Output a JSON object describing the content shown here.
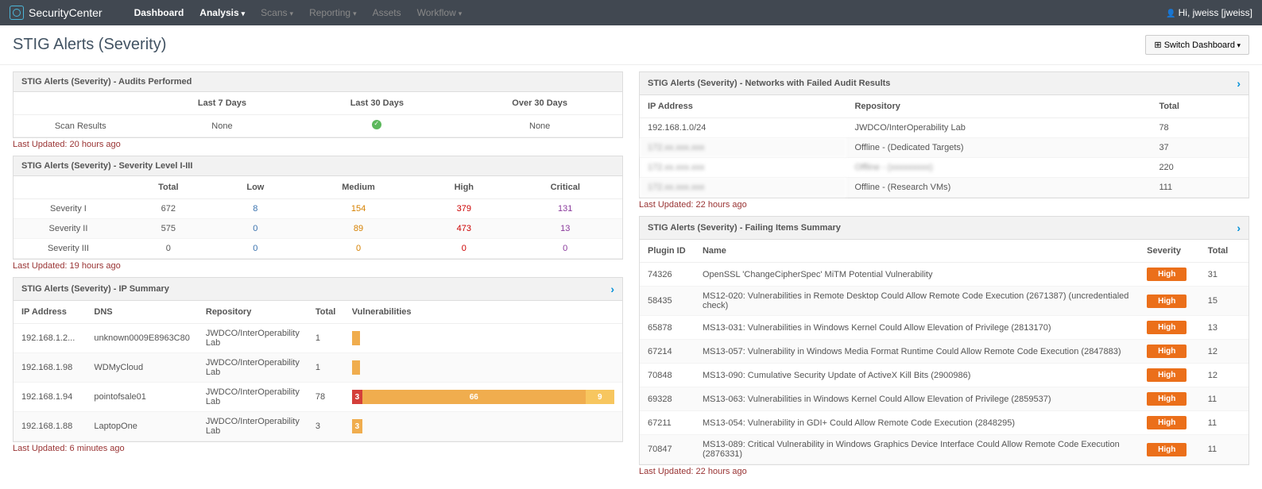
{
  "brand": "SecurityCenter",
  "nav": {
    "items": [
      {
        "label": "Dashboard",
        "active": true,
        "caret": false
      },
      {
        "label": "Analysis",
        "active": true,
        "caret": true
      },
      {
        "label": "Scans",
        "active": false,
        "caret": true
      },
      {
        "label": "Reporting",
        "active": false,
        "caret": true
      },
      {
        "label": "Assets",
        "active": false,
        "caret": false
      },
      {
        "label": "Workflow",
        "active": false,
        "caret": true
      }
    ],
    "user": "Hi, jweiss [jweiss]"
  },
  "page": {
    "title": "STIG Alerts (Severity)",
    "switch": "Switch Dashboard"
  },
  "audits": {
    "title": "STIG Alerts (Severity) - Audits Performed",
    "cols": [
      "Last 7 Days",
      "Last 30 Days",
      "Over 30 Days"
    ],
    "row_label": "Scan Results",
    "cells": [
      "None",
      "CHECK",
      "None"
    ],
    "updated": "Last Updated: 20 hours ago"
  },
  "severity": {
    "title": "STIG Alerts (Severity) - Severity Level I-III",
    "cols": [
      "Total",
      "Low",
      "Medium",
      "High",
      "Critical"
    ],
    "rows": [
      {
        "label": "Severity I",
        "vals": [
          "672",
          "8",
          "154",
          "379",
          "131"
        ]
      },
      {
        "label": "Severity II",
        "vals": [
          "575",
          "0",
          "89",
          "473",
          "13"
        ]
      },
      {
        "label": "Severity III",
        "vals": [
          "0",
          "0",
          "0",
          "0",
          "0"
        ]
      }
    ],
    "col_colors": [
      "#555",
      "#3b73af",
      "#d68100",
      "#c00",
      "#8a3a9c"
    ],
    "updated": "Last Updated: 19 hours ago"
  },
  "ipsummary": {
    "title": "STIG Alerts (Severity) - IP Summary",
    "cols": [
      "IP Address",
      "DNS",
      "Repository",
      "Total",
      "Vulnerabilities"
    ],
    "rows": [
      {
        "ip": "192.168.1.2...",
        "dns": "unknown0009E8963C80",
        "repo": "JWDCO/InterOperability Lab",
        "total": "1",
        "bar": [
          {
            "w": 3,
            "c": "#f0ad4e",
            "t": ""
          }
        ]
      },
      {
        "ip": "192.168.1.98",
        "dns": "WDMyCloud",
        "repo": "JWDCO/InterOperability Lab",
        "total": "1",
        "bar": [
          {
            "w": 3,
            "c": "#f0ad4e",
            "t": ""
          }
        ]
      },
      {
        "ip": "192.168.1.94",
        "dns": "pointofsale01",
        "repo": "JWDCO/InterOperability Lab",
        "total": "78",
        "bar": [
          {
            "w": 4,
            "c": "#d43f3a",
            "t": "3"
          },
          {
            "w": 85,
            "c": "#f0ad4e",
            "t": "66"
          },
          {
            "w": 11,
            "c": "#f7c65f",
            "t": "9"
          }
        ]
      },
      {
        "ip": "192.168.1.88",
        "dns": "LaptopOne",
        "repo": "JWDCO/InterOperability Lab",
        "total": "3",
        "bar": [
          {
            "w": 4,
            "c": "#f0ad4e",
            "t": "3"
          }
        ]
      }
    ],
    "updated": "Last Updated: 6 minutes ago"
  },
  "networks": {
    "title": "STIG Alerts (Severity) - Networks with Failed Audit Results",
    "cols": [
      "IP Address",
      "Repository",
      "Total"
    ],
    "rows": [
      {
        "ip": "192.168.1.0/24",
        "repo": "JWDCO/InterOperability Lab",
        "total": "78",
        "obs_ip": false,
        "obs_repo": false
      },
      {
        "ip": "172.xx.xxx.xxx",
        "repo": "Offline - (Dedicated Targets)",
        "total": "37",
        "obs_ip": true,
        "obs_repo": false
      },
      {
        "ip": "172.xx.xxx.xxx",
        "repo": "Offline - (xxxxxxxxx)",
        "total": "220",
        "obs_ip": true,
        "obs_repo": true
      },
      {
        "ip": "172.xx.xxx.xxx",
        "repo": "Offline - (Research VMs)",
        "total": "111",
        "obs_ip": true,
        "obs_repo": false
      }
    ],
    "updated": "Last Updated: 22 hours ago"
  },
  "failing": {
    "title": "STIG Alerts (Severity) - Failing Items Summary",
    "cols": [
      "Plugin ID",
      "Name",
      "Severity",
      "Total"
    ],
    "rows": [
      {
        "id": "74326",
        "name": "OpenSSL 'ChangeCipherSpec' MiTM Potential Vulnerability",
        "sev": "High",
        "total": "31"
      },
      {
        "id": "58435",
        "name": "MS12-020: Vulnerabilities in Remote Desktop Could Allow Remote Code Execution (2671387) (uncredentialed check)",
        "sev": "High",
        "total": "15"
      },
      {
        "id": "65878",
        "name": "MS13-031: Vulnerabilities in Windows Kernel Could Allow Elevation of Privilege (2813170)",
        "sev": "High",
        "total": "13"
      },
      {
        "id": "67214",
        "name": "MS13-057: Vulnerability in Windows Media Format Runtime Could Allow Remote Code Execution (2847883)",
        "sev": "High",
        "total": "12"
      },
      {
        "id": "70848",
        "name": "MS13-090: Cumulative Security Update of ActiveX Kill Bits (2900986)",
        "sev": "High",
        "total": "12"
      },
      {
        "id": "69328",
        "name": "MS13-063: Vulnerabilities in Windows Kernel Could Allow Elevation of Privilege (2859537)",
        "sev": "High",
        "total": "11"
      },
      {
        "id": "67211",
        "name": "MS13-054: Vulnerability in GDI+ Could Allow Remote Code Execution (2848295)",
        "sev": "High",
        "total": "11"
      },
      {
        "id": "70847",
        "name": "MS13-089: Critical Vulnerability in Windows Graphics Device Interface Could Allow Remote Code Execution (2876331)",
        "sev": "High",
        "total": "11"
      }
    ],
    "updated": "Last Updated: 22 hours ago",
    "badge_color": "#eb6f1a"
  }
}
